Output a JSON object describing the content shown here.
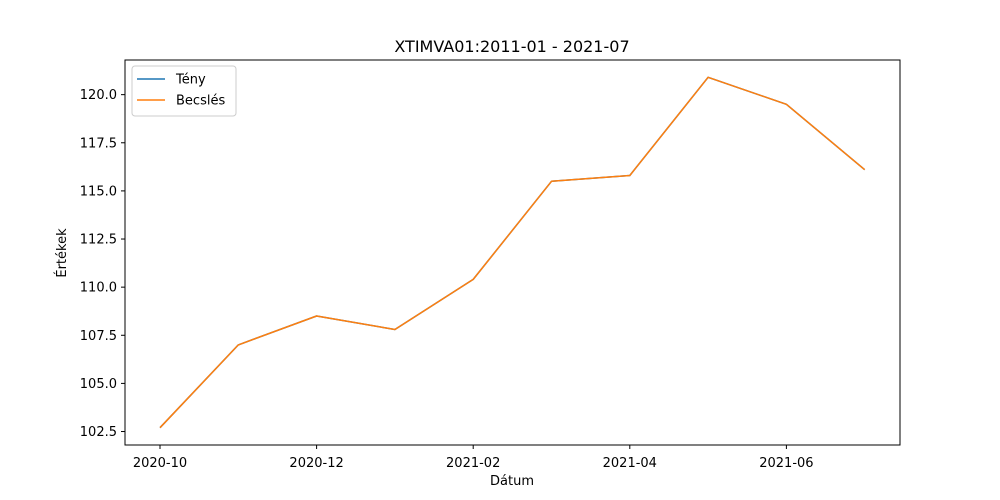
{
  "chart_data": {
    "type": "line",
    "title": "XTIMVA01:2011-01 - 2021-07",
    "xlabel": "Dátum",
    "ylabel": "Értékek",
    "x": [
      "2020-10",
      "2020-11",
      "2020-12",
      "2021-01",
      "2021-02",
      "2021-03",
      "2021-04",
      "2021-05",
      "2021-06",
      "2021-07"
    ],
    "x_ticks": [
      "2020-10",
      "2020-12",
      "2021-02",
      "2021-04",
      "2021-06"
    ],
    "y_ticks": [
      "102.5",
      "105.0",
      "107.5",
      "110.0",
      "112.5",
      "115.0",
      "117.5",
      "120.0"
    ],
    "ylim": [
      101.8,
      121.8
    ],
    "legend_position": "upper-left",
    "grid": false,
    "series": [
      {
        "name": "Tény",
        "color": "#1f77b4",
        "values": [
          102.7,
          107.0,
          108.5,
          107.8,
          110.4,
          115.5,
          115.8,
          120.9,
          119.5,
          116.1
        ]
      },
      {
        "name": "Becslés",
        "color": "#ff7f0e",
        "values": [
          102.7,
          107.0,
          108.5,
          107.8,
          110.4,
          115.5,
          115.8,
          120.9,
          119.5,
          116.1
        ]
      }
    ]
  }
}
